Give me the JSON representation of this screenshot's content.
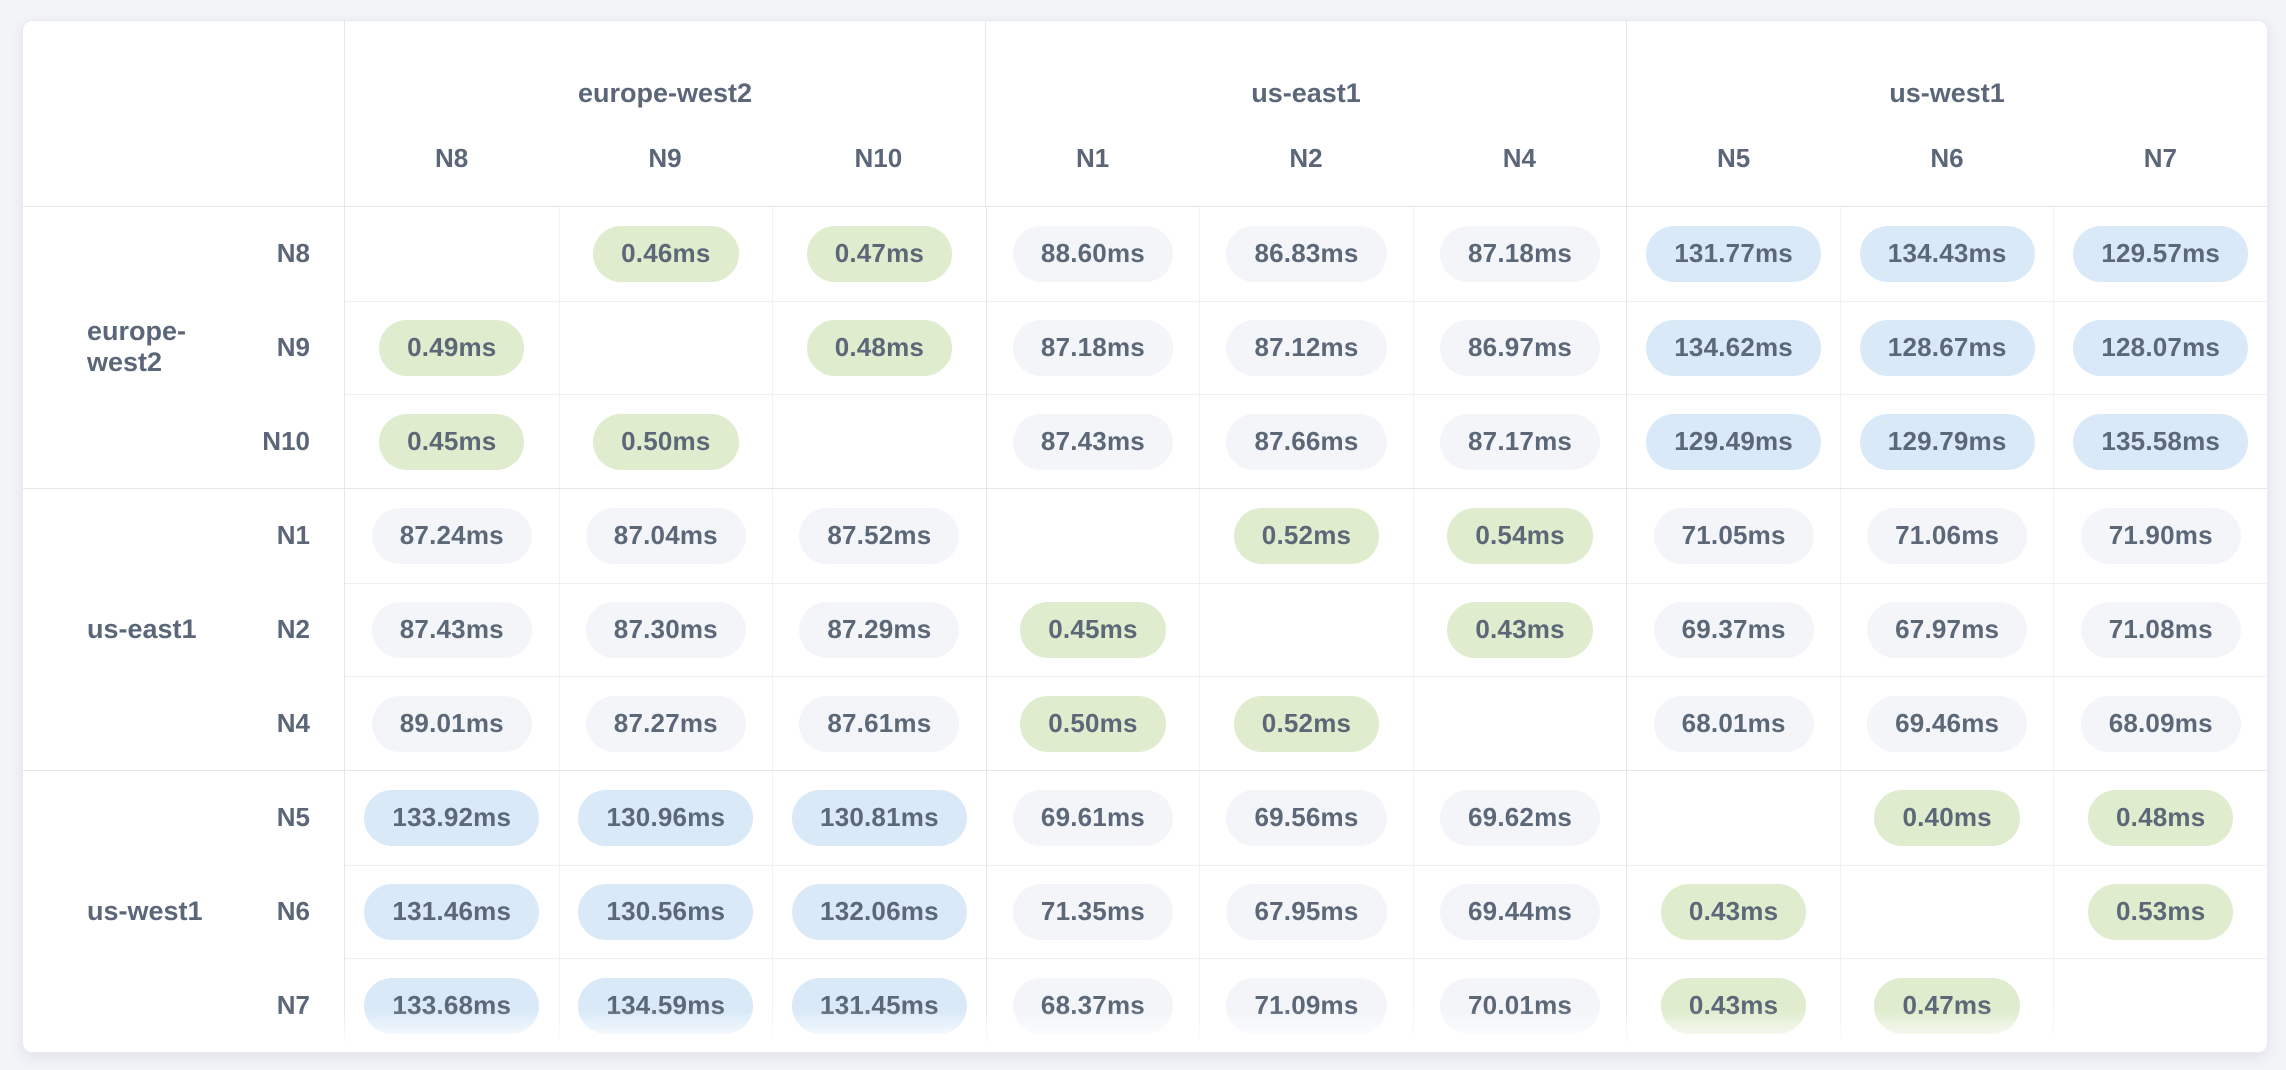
{
  "latency_matrix": {
    "unit": "ms",
    "column_groups": [
      {
        "region": "europe-west2",
        "nodes": [
          "N8",
          "N9",
          "N10"
        ]
      },
      {
        "region": "us-east1",
        "nodes": [
          "N1",
          "N2",
          "N4"
        ]
      },
      {
        "region": "us-west1",
        "nodes": [
          "N5",
          "N6",
          "N7"
        ]
      }
    ],
    "row_groups": [
      {
        "region": "europe-west2",
        "rows": [
          {
            "node": "N8",
            "values": [
              null,
              "0.46ms",
              "0.47ms",
              "88.60ms",
              "86.83ms",
              "87.18ms",
              "131.77ms",
              "134.43ms",
              "129.57ms"
            ]
          },
          {
            "node": "N9",
            "values": [
              "0.49ms",
              null,
              "0.48ms",
              "87.18ms",
              "87.12ms",
              "86.97ms",
              "134.62ms",
              "128.67ms",
              "128.07ms"
            ]
          },
          {
            "node": "N10",
            "values": [
              "0.45ms",
              "0.50ms",
              null,
              "87.43ms",
              "87.66ms",
              "87.17ms",
              "129.49ms",
              "129.79ms",
              "135.58ms"
            ]
          }
        ]
      },
      {
        "region": "us-east1",
        "rows": [
          {
            "node": "N1",
            "values": [
              "87.24ms",
              "87.04ms",
              "87.52ms",
              null,
              "0.52ms",
              "0.54ms",
              "71.05ms",
              "71.06ms",
              "71.90ms"
            ]
          },
          {
            "node": "N2",
            "values": [
              "87.43ms",
              "87.30ms",
              "87.29ms",
              "0.45ms",
              null,
              "0.43ms",
              "69.37ms",
              "67.97ms",
              "71.08ms"
            ]
          },
          {
            "node": "N4",
            "values": [
              "89.01ms",
              "87.27ms",
              "87.61ms",
              "0.50ms",
              "0.52ms",
              null,
              "68.01ms",
              "69.46ms",
              "68.09ms"
            ]
          }
        ]
      },
      {
        "region": "us-west1",
        "rows": [
          {
            "node": "N5",
            "values": [
              "133.92ms",
              "130.96ms",
              "130.81ms",
              "69.61ms",
              "69.56ms",
              "69.62ms",
              null,
              "0.40ms",
              "0.48ms"
            ]
          },
          {
            "node": "N6",
            "values": [
              "131.46ms",
              "130.56ms",
              "132.06ms",
              "71.35ms",
              "67.95ms",
              "69.44ms",
              "0.43ms",
              null,
              "0.53ms"
            ]
          },
          {
            "node": "N7",
            "values": [
              "133.68ms",
              "134.59ms",
              "131.45ms",
              "68.37ms",
              "71.09ms",
              "70.01ms",
              "0.43ms",
              "0.47ms",
              null
            ]
          }
        ]
      }
    ],
    "value_tones": {
      "green_threshold_below_ms": 1,
      "blue_threshold_at_or_above_ms": 100
    },
    "colors": {
      "page_background": "#f3f4f8",
      "pill_green": "#dfeccd",
      "pill_blue": "#d9e9f8",
      "pill_gray": "#f3f5f9",
      "text": "#5b6779"
    }
  }
}
